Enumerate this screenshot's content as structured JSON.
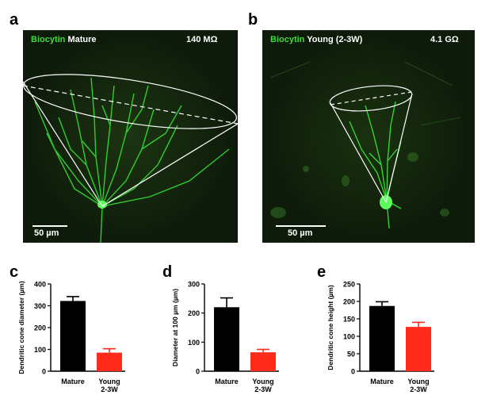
{
  "panels": {
    "a": {
      "letter": "a",
      "stain": "Biocytin",
      "group": "Mature",
      "resistance": "140 MΩ",
      "scalebar": "50 µm"
    },
    "b": {
      "letter": "b",
      "stain": "Biocytin",
      "group": "Young (2-3W)",
      "resistance": "4.1 GΩ",
      "scalebar": "50 µm"
    },
    "c": {
      "letter": "c"
    },
    "d": {
      "letter": "d"
    },
    "e": {
      "letter": "e"
    }
  },
  "colors": {
    "mature": "#000000",
    "young": "#ff2a1a",
    "neuron": "#33e033",
    "background": "#0e1a0a"
  },
  "chart_data": [
    {
      "type": "bar",
      "panel": "c",
      "categories": [
        "Mature",
        "Young\n2-3W"
      ],
      "category_lines": [
        [
          "Mature"
        ],
        [
          "Young",
          "2-3W"
        ]
      ],
      "values": [
        322,
        85
      ],
      "errors": [
        20,
        18
      ],
      "ylabel": "Dendritic cone diameter (µm)",
      "ylim": [
        0,
        400
      ],
      "yticks": [
        0,
        100,
        200,
        300,
        400
      ]
    },
    {
      "type": "bar",
      "panel": "d",
      "categories": [
        "Mature",
        "Young\n2-3W"
      ],
      "category_lines": [
        [
          "Mature"
        ],
        [
          "Young",
          "2-3W"
        ]
      ],
      "values": [
        220,
        65
      ],
      "errors": [
        32,
        10
      ],
      "ylabel": "Diameter at 100 µm (µm)",
      "ylim": [
        0,
        300
      ],
      "yticks": [
        0,
        100,
        200,
        300
      ]
    },
    {
      "type": "bar",
      "panel": "e",
      "categories": [
        "Mature",
        "Young\n2-3W"
      ],
      "category_lines": [
        [
          "Mature"
        ],
        [
          "Young",
          "2-3W"
        ]
      ],
      "values": [
        187,
        127
      ],
      "errors": [
        12,
        13
      ],
      "ylabel": "Dendritic cone height (µm)",
      "ylim": [
        0,
        250
      ],
      "yticks": [
        0,
        50,
        100,
        150,
        200,
        250
      ]
    }
  ]
}
